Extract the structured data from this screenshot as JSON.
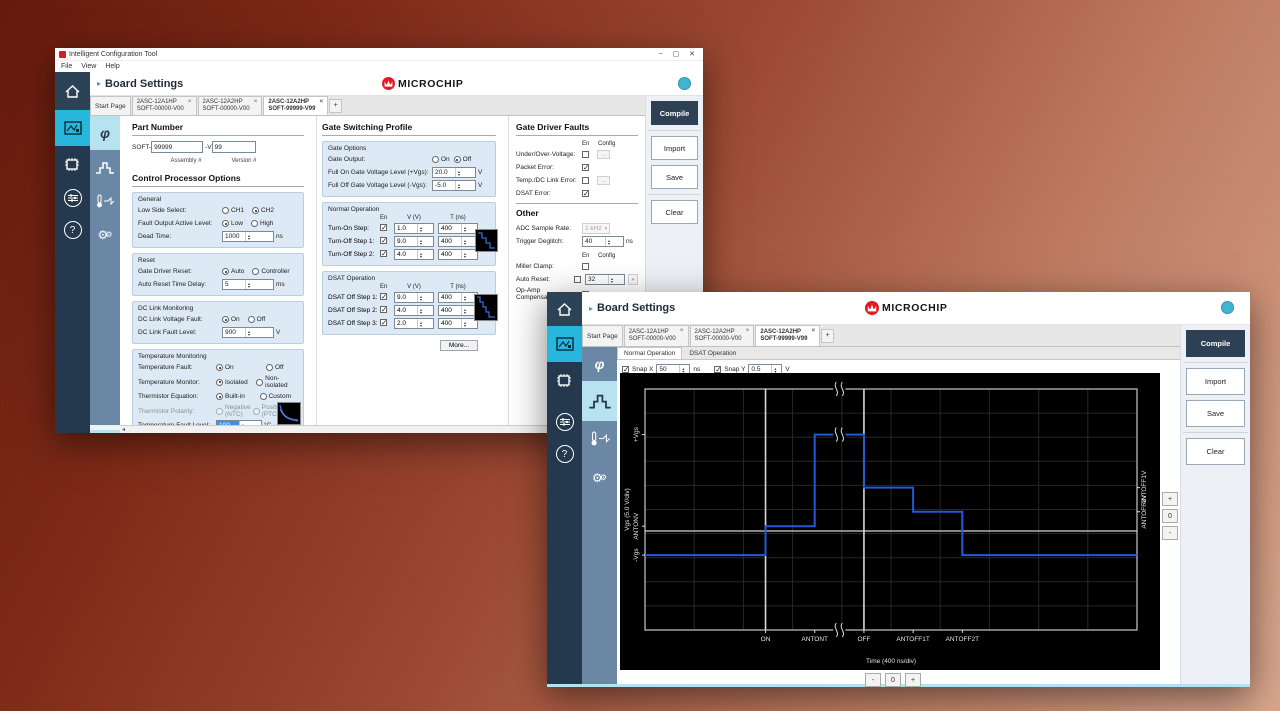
{
  "icons": {
    "minimize": "–",
    "maximize": "▢",
    "close": "✕",
    "help": "?",
    "phi": "φ",
    "breadcrumb": "▸",
    "tab_close": "×",
    "tab_add": "+",
    "dropdown": "▾",
    "scroll_left": "◂",
    "config": "...",
    "gear": "⚙"
  },
  "back": {
    "titlebar": {
      "title": "Intelligent Configuration Tool"
    },
    "menu": {
      "file": "File",
      "view": "View",
      "help": "Help"
    },
    "header": {
      "title": "Board Settings",
      "brand": "MICROCHIP"
    },
    "tabs": {
      "start": "Start Page",
      "t1l1": "2ASC-12A1HP",
      "t1l2": "SOFT-00000-V00",
      "t2l1": "2ASC-12A2HP",
      "t2l2": "SOFT-00000-V00",
      "t3l1": "2ASC-12A2HP",
      "t3l2": "SOFT-99999-V99"
    },
    "part_number": {
      "heading": "Part Number",
      "prefix": "SOFT-",
      "assembly_value": "99999",
      "sep": "-V",
      "version_value": "99",
      "assembly_label": "Assembly #",
      "version_label": "Version #"
    },
    "cpo": {
      "heading": "Control Processor Options",
      "general": {
        "title": "General",
        "low_side": {
          "label": "Low Side Select:",
          "opt1": "CH1",
          "opt2": "CH2",
          "selected": "CH2"
        },
        "fault_out": {
          "label": "Fault Output Active Level:",
          "opt1": "Low",
          "opt2": "High",
          "selected": "Low"
        },
        "dead_time": {
          "label": "Dead Time:",
          "value": "1000",
          "unit": "ns"
        }
      },
      "reset": {
        "title": "Reset",
        "gdr": {
          "label": "Gate Driver Reset:",
          "opt1": "Auto",
          "opt2": "Controller",
          "selected": "Auto"
        },
        "artd": {
          "label": "Auto Reset Time Delay:",
          "value": "5",
          "unit": "ms"
        }
      },
      "dclink": {
        "title": "DC Link Monitoring",
        "vf": {
          "label": "DC Link Voltage Fault:",
          "opt1": "On",
          "opt2": "Off",
          "selected": "On"
        },
        "fl": {
          "label": "DC Link Fault Level:",
          "value": "900",
          "unit": "V"
        }
      },
      "temp": {
        "title": "Temperature Monitoring",
        "tf": {
          "label": "Temperature Fault:",
          "opt1": "On",
          "opt2": "Off",
          "selected": "On"
        },
        "tm": {
          "label": "Temperature Monitor:",
          "opt1": "Isolated",
          "opt2": "Non-isolated",
          "selected": "Isolated"
        },
        "te": {
          "label": "Thermistor Equation:",
          "opt1": "Built-in",
          "opt2": "Custom",
          "selected": "Built-in"
        },
        "tp": {
          "label": "Thermistor Polarity:",
          "opt1": "Negative (NTC)",
          "opt2": "Positive (PTC)",
          "selected": "",
          "disabled": true
        },
        "tfl": {
          "label": "Temperature Fault Level:",
          "value": "100",
          "unit": "°C"
        }
      }
    },
    "gsp": {
      "heading": "Gate Switching Profile",
      "gate_options": {
        "title": "Gate Options",
        "output": {
          "label": "Gate Output:",
          "opt1": "On",
          "opt2": "Off",
          "selected": "Off"
        },
        "fullon": {
          "label": "Full On Gate Voltage Level (+Vgs):",
          "value": "20.0",
          "unit": "V"
        },
        "fulloff": {
          "label": "Full Off Gate Voltage Level (-Vgs):",
          "value": "-5.0",
          "unit": "V"
        }
      },
      "normal": {
        "title": "Normal Operation",
        "h_en": "En",
        "h_v": "V (V)",
        "h_t": "T (ns)",
        "rows": [
          {
            "label": "Turn-On Step:",
            "v": "1.0",
            "t": "400",
            "enabled": true
          },
          {
            "label": "Turn-Off Step 1:",
            "v": "9.0",
            "t": "400",
            "enabled": true
          },
          {
            "label": "Turn-Off Step 2:",
            "v": "4.0",
            "t": "400",
            "enabled": true
          }
        ]
      },
      "dsat": {
        "title": "DSAT Operation",
        "h_en": "En",
        "h_v": "V (V)",
        "h_t": "T (ns)",
        "rows": [
          {
            "label": "DSAT Off Step 1:",
            "v": "9.0",
            "t": "400",
            "enabled": true
          },
          {
            "label": "DSAT Off Step 2:",
            "v": "4.0",
            "t": "400",
            "enabled": true
          },
          {
            "label": "DSAT Off Step 3:",
            "v": "2.0",
            "t": "400",
            "enabled": true
          }
        ],
        "more": "More..."
      }
    },
    "gdf": {
      "heading": "Gate Driver Faults",
      "h_en": "En",
      "h_config": "Config",
      "rows": [
        {
          "label": "Under/Over-Voltage:",
          "checked": false,
          "config": true
        },
        {
          "label": "Packet Error:",
          "checked": true,
          "config": false
        },
        {
          "label": "Temp./DC Link Error:",
          "checked": false,
          "config": true
        },
        {
          "label": "DSAT Error:",
          "checked": true,
          "config": false
        }
      ],
      "other": {
        "heading": "Other",
        "adc": {
          "label": "ADC Sample Rate:",
          "value": "1 kHz"
        },
        "deglitch": {
          "label": "Trigger Deglitch:",
          "value": "40",
          "unit": "ns"
        },
        "h_en": "En",
        "h_config": "Config",
        "miller": {
          "label": "Miller Clamp:",
          "checked": false
        },
        "auto_reset": {
          "label": "Auto Reset:",
          "checked": false,
          "value": "32"
        },
        "opamp": {
          "label": "Op-Amp Compensation:",
          "checked": true
        }
      }
    },
    "actions": {
      "compile": "Compile",
      "import": "Import",
      "save": "Save",
      "clear": "Clear"
    }
  },
  "front": {
    "header": {
      "title": "Board Settings",
      "brand": "MICROCHIP"
    },
    "tabs": {
      "start": "Start Page",
      "t1l1": "2ASC-12A1HP",
      "t1l2": "SOFT-00000-V00",
      "t2l1": "2ASC-12A2HP",
      "t2l2": "SOFT-00000-V00",
      "t3l1": "2ASC-12A2HP",
      "t3l2": "SOFT-99999-V99"
    },
    "subtabs": {
      "normal": "Normal Operation",
      "dsat": "DSAT Operation"
    },
    "snap": {
      "x_label": "Snap X",
      "x_value": "50",
      "x_unit": "ns",
      "y_label": "Snap Y",
      "y_value": "0.5",
      "y_unit": "V"
    },
    "x_zoom": {
      "minus": "-",
      "reset": "0",
      "plus": "+"
    },
    "y_zoom": {
      "plus": "+",
      "reset": "0",
      "minus": "-"
    },
    "actions": {
      "compile": "Compile",
      "import": "Import",
      "save": "Save",
      "clear": "Clear"
    }
  },
  "chart_data": {
    "type": "line",
    "subtype": "step-waveform-editor",
    "title": "",
    "xlabel": "Time (400 ns/div)",
    "ylabel": "Vgs (5.0 V/div)",
    "v_per_div": 5.0,
    "ns_per_div": 400,
    "x_ticks": [
      {
        "label": "ON",
        "x_div": 2.45
      },
      {
        "label": "ANTONT",
        "x_div": 3.45
      },
      {
        "label": "OFF",
        "x_div": 4.45
      },
      {
        "label": "ANTOFF1T",
        "x_div": 5.45
      },
      {
        "label": "ANTOFF2T",
        "x_div": 6.45
      }
    ],
    "left_ticks": [
      {
        "label": "+Vgs",
        "volts": 20
      },
      {
        "label": "ANTONV",
        "volts": 1
      },
      {
        "label": "-Vgs",
        "volts": -5
      }
    ],
    "right_ticks": [
      {
        "label": "ANTOFF1V",
        "volts": 9
      },
      {
        "label": "ANTOFF2V",
        "volts": 4
      }
    ],
    "levels_v": {
      "+Vgs": 20.0,
      "ANTONV": 1.0,
      "ANTOFF1V": 9.0,
      "ANTOFF2V": 4.0,
      "-Vgs": -5.0
    },
    "marker_lines_x_div": [
      2.45,
      4.45
    ],
    "zero_line_volts": 0,
    "break_x_div": 3.95,
    "break_cross_volts": 20,
    "points": [
      [
        0,
        -5
      ],
      [
        2.45,
        -5
      ],
      [
        2.45,
        1
      ],
      [
        3.45,
        1
      ],
      [
        3.45,
        20
      ],
      [
        4.45,
        20
      ],
      [
        4.45,
        9
      ],
      [
        5.45,
        9
      ],
      [
        5.45,
        4
      ],
      [
        6.45,
        4
      ],
      [
        6.45,
        -5
      ],
      [
        10,
        -5
      ]
    ],
    "grid": true,
    "waveform_color": "#2457d9",
    "background_color": "#000000"
  }
}
